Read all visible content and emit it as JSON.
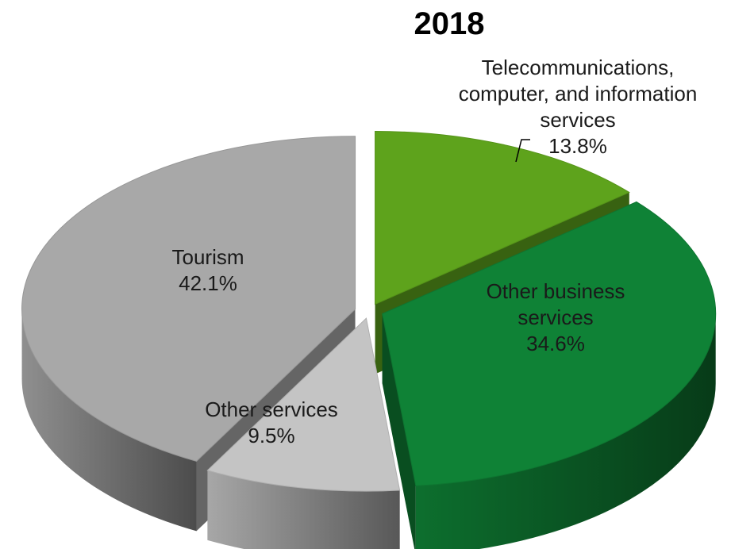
{
  "chart_data": {
    "type": "pie",
    "title": "2018",
    "style": "3d-exploded",
    "slices": [
      {
        "label_lines": [
          "Telecommunications,",
          "computer, and information",
          "services"
        ],
        "value_label": "13.8%",
        "value": 13.8,
        "color": "#5ea31c"
      },
      {
        "label_lines": [
          "Other business",
          "services"
        ],
        "value_label": "34.6%",
        "value": 34.6,
        "color": "#0f8236"
      },
      {
        "label_lines": [
          "Other services"
        ],
        "value_label": "9.5%",
        "value": 9.5,
        "color": "#c4c4c4"
      },
      {
        "label_lines": [
          "Tourism"
        ],
        "value_label": "42.1%",
        "value": 42.1,
        "color": "#a8a8a8"
      }
    ]
  }
}
